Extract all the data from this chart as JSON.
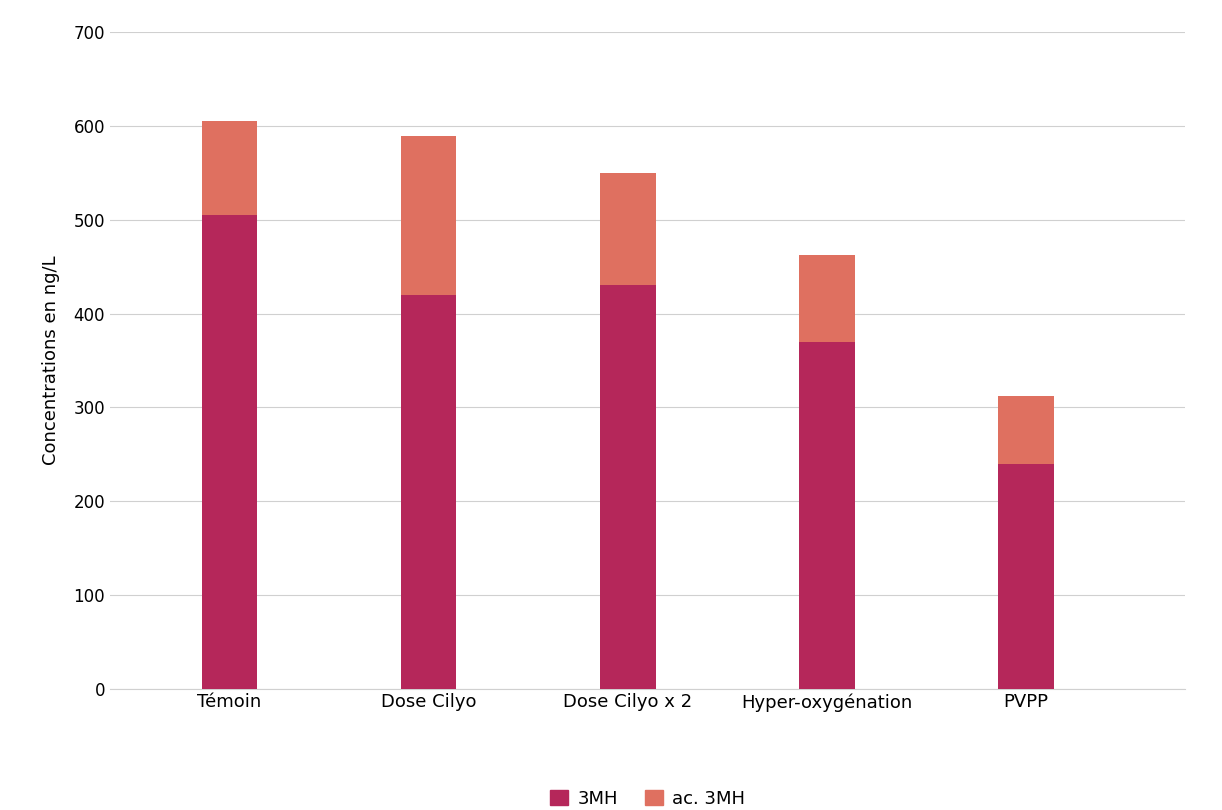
{
  "categories": [
    "Témoin",
    "Dose Cilyo",
    "Dose Cilyo x 2",
    "Hyper-oxygénation",
    "PVPP"
  ],
  "values_3MH": [
    505,
    420,
    430,
    370,
    240
  ],
  "values_ac3MH": [
    100,
    170,
    120,
    92,
    72
  ],
  "color_3MH": "#b5275a",
  "color_ac3MH": "#df7060",
  "ylabel": "Concentrations en ng/L",
  "ylim": [
    0,
    700
  ],
  "yticks": [
    0,
    100,
    200,
    300,
    400,
    500,
    600,
    700
  ],
  "legend_label_3MH": "3MH",
  "legend_label_ac3MH": "ac. 3MH",
  "bar_width": 0.28,
  "background_color": "#ffffff",
  "grid_color": "#d0d0d0",
  "xlabel_fontsize": 13,
  "ylabel_fontsize": 13,
  "tick_fontsize": 12,
  "legend_fontsize": 13
}
